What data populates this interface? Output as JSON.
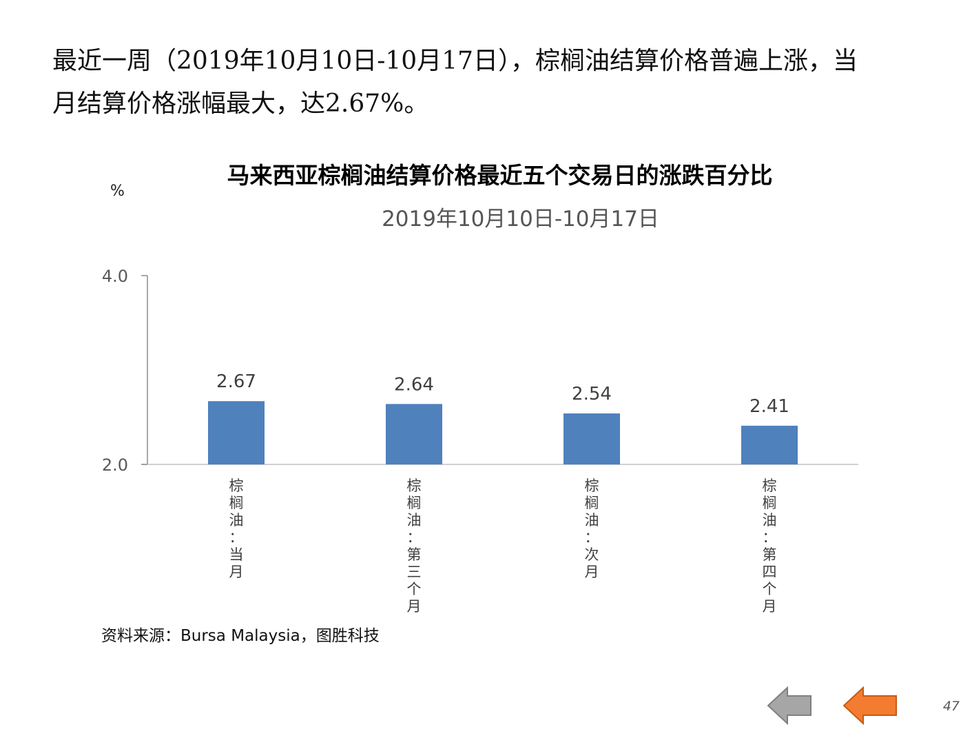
{
  "intro": {
    "line1": "最近一周（2019年10月10日-10月17日），棕榈油结算价格普遍上涨，当",
    "line2": "月结算价格涨幅最大，达2.67%。"
  },
  "chart_data": {
    "type": "bar",
    "title": "马来西亚棕榈油结算价格最近五个交易日的涨跌百分比",
    "subtitle": "2019年10月10日-10月17日",
    "ylabel": "%",
    "ylim": [
      2.0,
      4.0
    ],
    "yticks": [
      "2.0",
      "4.0"
    ],
    "categories": [
      "棕榈油：当月",
      "棕榈油：第三个月",
      "棕榈油：次月",
      "棕榈油：第四个月"
    ],
    "values": [
      2.67,
      2.64,
      2.54,
      2.41
    ],
    "value_labels": [
      "2.67",
      "2.64",
      "2.54",
      "2.41"
    ],
    "bar_color": "#4F81BD",
    "grid": false,
    "legend": "none"
  },
  "source": "资料来源：Bursa Malaysia，图胜科技",
  "nav": {
    "prev_icon": "left-arrow-icon",
    "next_icon": "left-arrow-icon",
    "prev_color": "#A6A6A6",
    "next_color": "#F47C30"
  },
  "page_number": "47"
}
